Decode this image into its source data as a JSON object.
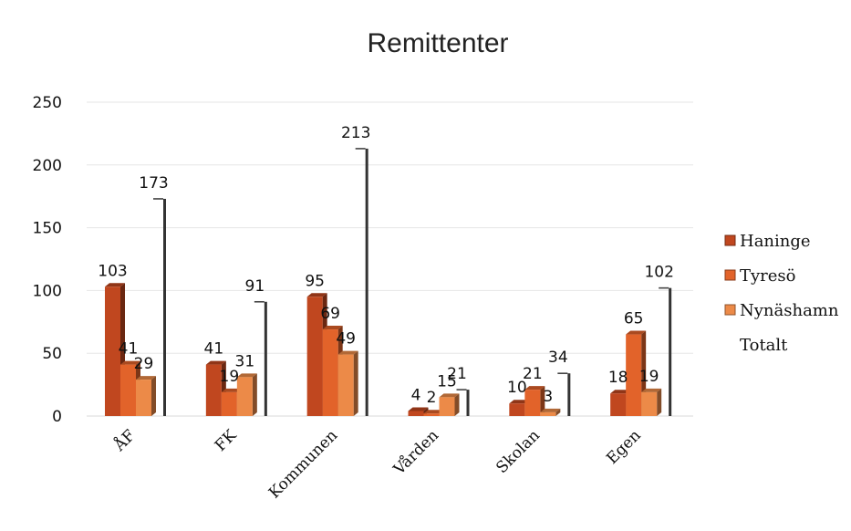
{
  "chart_data": {
    "type": "bar",
    "title": "Remittenter",
    "categories": [
      "ÅF",
      "FK",
      "Kommunen",
      "Vården",
      "Skolan",
      "Egen"
    ],
    "series": [
      {
        "name": "Haninge",
        "values": [
          103,
          41,
          95,
          4,
          10,
          18
        ],
        "color": "#c0471f"
      },
      {
        "name": "Tyresö",
        "values": [
          41,
          19,
          69,
          2,
          21,
          65
        ],
        "color": "#e2632a"
      },
      {
        "name": "Nynäshamn",
        "values": [
          29,
          31,
          49,
          15,
          3,
          19
        ],
        "color": "#ec8a48"
      },
      {
        "name": "Totalt",
        "values": [
          173,
          91,
          213,
          21,
          34,
          102
        ],
        "color": "#ffffff"
      }
    ],
    "ylim": [
      0,
      250
    ],
    "yticks": [
      0,
      50,
      100,
      150,
      200,
      250
    ],
    "legend_position": "right",
    "grid": true
  }
}
